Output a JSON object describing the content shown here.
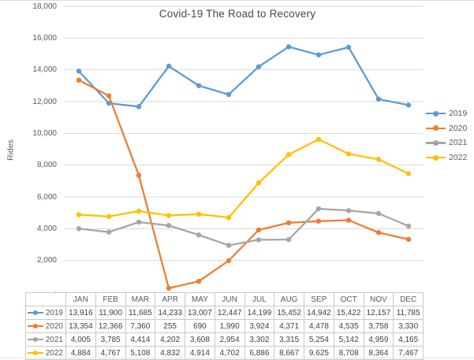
{
  "chart": {
    "title": "Covid-19 The Road to Recovery",
    "y_axis_title": "Rides"
  },
  "chart_data": {
    "type": "line",
    "title": "Covid-19 The Road to Recovery",
    "xlabel": "",
    "ylabel": "Rides",
    "ylim": [
      0,
      18000
    ],
    "ytick_step": 2000,
    "ytick_labels": [
      "-",
      "2,000",
      "4,000",
      "6,000",
      "8,000",
      "10,000",
      "12,000",
      "14,000",
      "16,000",
      "18,000"
    ],
    "grid": true,
    "legend_position": "right",
    "categories": [
      "JAN",
      "FEB",
      "MAR",
      "APR",
      "MAY",
      "JUN",
      "JUL",
      "AUG",
      "SEP",
      "OCT",
      "NOV",
      "DEC"
    ],
    "series": [
      {
        "name": "2019",
        "color": "#5B9BD5",
        "values": [
          13916,
          11900,
          11685,
          14233,
          13007,
          12447,
          14199,
          15452,
          14942,
          15422,
          12157,
          11785
        ]
      },
      {
        "name": "2020",
        "color": "#ED7D31",
        "values": [
          13354,
          12366,
          7360,
          255,
          690,
          1990,
          3924,
          4371,
          4478,
          4535,
          3758,
          3330
        ]
      },
      {
        "name": "2021",
        "color": "#A5A5A5",
        "values": [
          4005,
          3785,
          4414,
          4202,
          3608,
          2954,
          3302,
          3315,
          5254,
          5142,
          4959,
          4165
        ]
      },
      {
        "name": "2022",
        "color": "#FFC000",
        "values": [
          4884,
          4767,
          5108,
          4832,
          4914,
          4702,
          6886,
          8667,
          9625,
          8708,
          8364,
          7467
        ]
      }
    ]
  },
  "table": {
    "corner_label": "",
    "columns": [
      "JAN",
      "FEB",
      "MAR",
      "APR",
      "MAY",
      "JUN",
      "JUL",
      "AUG",
      "SEP",
      "OCT",
      "NOV",
      "DEC"
    ],
    "rows": [
      {
        "label": "2019",
        "values": [
          "13,916",
          "11,900",
          "11,685",
          "14,233",
          "13,007",
          "12,447",
          "14,199",
          "15,452",
          "14,942",
          "15,422",
          "12,157",
          "11,785"
        ]
      },
      {
        "label": "2020",
        "values": [
          "13,354",
          "12,366",
          "7,360",
          "255",
          "690",
          "1,990",
          "3,924",
          "4,371",
          "4,478",
          "4,535",
          "3,758",
          "3,330"
        ]
      },
      {
        "label": "2021",
        "values": [
          "4,005",
          "3,785",
          "4,414",
          "4,202",
          "3,608",
          "2,954",
          "3,302",
          "3,315",
          "5,254",
          "5,142",
          "4,959",
          "4,165"
        ]
      },
      {
        "label": "2022",
        "values": [
          "4,884",
          "4,767",
          "5,108",
          "4,832",
          "4,914",
          "4,702",
          "6,886",
          "8,667",
          "9,625",
          "8,708",
          "8,364",
          "7,467"
        ]
      }
    ]
  },
  "colors": {
    "series_2019": "#5B9BD5",
    "series_2020": "#ED7D31",
    "series_2021": "#A5A5A5",
    "series_2022": "#FFC000",
    "gridline": "#D9D9D9",
    "axis_text": "#595959",
    "table_border": "#C9C9C9",
    "value_text": "#3F3F3F",
    "title_text": "#484848"
  }
}
